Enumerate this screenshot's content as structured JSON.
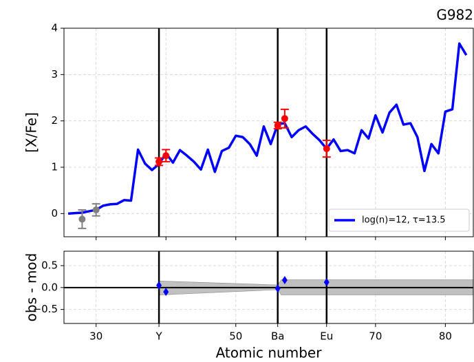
{
  "chart_data": [
    {
      "type": "line",
      "title": "G982",
      "ylabel": "[X/Fe]",
      "xlim": [
        25.4,
        84
      ],
      "ylim": [
        -0.5,
        4
      ],
      "xgrid": [
        30,
        40,
        50,
        60,
        70,
        80
      ],
      "yticks": [
        0,
        1,
        2,
        3,
        4
      ],
      "grid": true,
      "vlines": [
        39,
        56,
        63
      ],
      "legend": "lower right",
      "series": [
        {
          "type": "line",
          "name": "log(n)=12, τ=13.5",
          "color": "#0000ff",
          "x": [
            26,
            27,
            28,
            29,
            30,
            31,
            32,
            33,
            34,
            35,
            36,
            37,
            38,
            39,
            40,
            41,
            42,
            43,
            44,
            45,
            46,
            47,
            48,
            49,
            50,
            51,
            52,
            53,
            54,
            55,
            56,
            57,
            58,
            59,
            60,
            61,
            62,
            63,
            64,
            65,
            66,
            67,
            68,
            69,
            70,
            71,
            72,
            73,
            74,
            75,
            76,
            77,
            78,
            79,
            80,
            81,
            82,
            83
          ],
          "values": [
            0.0,
            0.01,
            0.02,
            0.05,
            0.08,
            0.17,
            0.2,
            0.21,
            0.29,
            0.28,
            1.38,
            1.08,
            0.94,
            1.07,
            1.3,
            1.1,
            1.37,
            1.25,
            1.12,
            0.95,
            1.38,
            0.9,
            1.35,
            1.42,
            1.68,
            1.65,
            1.5,
            1.25,
            1.88,
            1.5,
            1.93,
            1.95,
            1.65,
            1.8,
            1.88,
            1.72,
            1.58,
            1.4,
            1.6,
            1.35,
            1.37,
            1.3,
            1.8,
            1.62,
            2.12,
            1.75,
            2.18,
            2.35,
            1.92,
            1.95,
            1.65,
            0.92,
            1.5,
            1.3,
            2.2,
            2.25,
            3.67,
            3.42
          ]
        },
        {
          "type": "errorbar",
          "color": "#808080",
          "x": [
            28,
            30
          ],
          "values": [
            -0.12,
            0.08
          ],
          "errors": [
            0.2,
            0.13
          ]
        },
        {
          "type": "errorbar",
          "color": "#ff0000",
          "x": [
            39,
            40,
            56,
            57,
            63
          ],
          "values": [
            1.12,
            1.25,
            1.9,
            2.05,
            1.4
          ],
          "errors": [
            0.08,
            0.13,
            0.07,
            0.2,
            0.18
          ]
        }
      ]
    },
    {
      "type": "scatter",
      "ylabel": "obs - mod",
      "xlabel": "Atomic number",
      "xlim": [
        25.4,
        84
      ],
      "ylim": [
        -0.82,
        0.83
      ],
      "xticks": [
        30,
        {
          "value": 39,
          "label": "Y"
        },
        50,
        {
          "value": 56,
          "label": "Ba"
        },
        {
          "value": 63,
          "label": "Eu"
        },
        70,
        80
      ],
      "yticks": [
        {
          "value": 0.5,
          "label": "0.5"
        },
        {
          "value": 0,
          "label": "0.0"
        },
        {
          "value": -0.5,
          "label": "−0.5"
        }
      ],
      "grid": true,
      "vlines": [
        39,
        56,
        63
      ],
      "hline": 0,
      "band": {
        "color": "#c0c0c0",
        "x": [
          39,
          56,
          56.5,
          84
        ],
        "upper": [
          0.15,
          0.06,
          0.18,
          0.18
        ],
        "lower": [
          -0.17,
          -0.05,
          -0.17,
          -0.17
        ]
      },
      "series": [
        {
          "type": "scatter",
          "color": "#0000ff",
          "x": [
            39,
            40,
            56,
            57,
            63
          ],
          "values": [
            0.05,
            -0.1,
            -0.02,
            0.17,
            0.12
          ]
        }
      ]
    }
  ]
}
